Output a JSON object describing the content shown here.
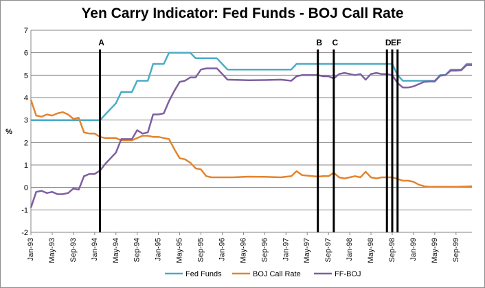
{
  "chart_data": {
    "type": "line",
    "title": "Yen Carry Indicator: Fed Funds - BOJ Call Rate",
    "xlabel": "",
    "ylabel": "%",
    "ylim": [
      -2,
      7
    ],
    "yticks": [
      -2,
      -1,
      0,
      1,
      2,
      3,
      4,
      5,
      6,
      7
    ],
    "xlim": [
      "1993-01",
      "1999-12"
    ],
    "x_tick_labels": [
      "Jan-93",
      "May-93",
      "Sep-93",
      "Jan-94",
      "May-94",
      "Sep-94",
      "Jan-95",
      "May-95",
      "Sep-95",
      "Jan-96",
      "May-96",
      "Sep-96",
      "Jan-97",
      "May-97",
      "Sep-97",
      "Jan-98",
      "May-98",
      "Sep-98",
      "Jan-99",
      "May-99",
      "Sep-99"
    ],
    "grid": "horizontal",
    "legend_position": "bottom",
    "events": [
      {
        "label": "A",
        "x": "1994-02"
      },
      {
        "label": "B",
        "x": "1997-07"
      },
      {
        "label": "C",
        "x": "1997-10"
      },
      {
        "label": "D",
        "x": "1998-08"
      },
      {
        "label": "E",
        "x": "1998-09"
      },
      {
        "label": "F",
        "x": "1998-10"
      }
    ],
    "series": [
      {
        "name": "Fed Funds",
        "color": "#4bacc6",
        "points": [
          [
            "1993-01",
            3.0
          ],
          [
            "1993-12",
            3.0
          ],
          [
            "1994-02",
            3.0
          ],
          [
            "1994-03",
            3.25
          ],
          [
            "1994-04",
            3.5
          ],
          [
            "1994-05",
            3.75
          ],
          [
            "1994-06",
            4.25
          ],
          [
            "1994-07",
            4.25
          ],
          [
            "1994-08",
            4.25
          ],
          [
            "1994-09",
            4.75
          ],
          [
            "1994-10",
            4.75
          ],
          [
            "1994-11",
            4.75
          ],
          [
            "1994-12",
            5.5
          ],
          [
            "1995-01",
            5.5
          ],
          [
            "1995-02",
            5.5
          ],
          [
            "1995-03",
            6.0
          ],
          [
            "1995-06",
            6.0
          ],
          [
            "1995-07",
            6.0
          ],
          [
            "1995-08",
            5.75
          ],
          [
            "1995-12",
            5.75
          ],
          [
            "1996-01",
            5.5
          ],
          [
            "1996-02",
            5.25
          ],
          [
            "1997-02",
            5.25
          ],
          [
            "1997-03",
            5.5
          ],
          [
            "1998-08",
            5.5
          ],
          [
            "1998-09",
            5.5
          ],
          [
            "1998-10",
            5.0
          ],
          [
            "1998-11",
            4.75
          ],
          [
            "1999-05",
            4.75
          ],
          [
            "1999-06",
            5.0
          ],
          [
            "1999-07",
            5.0
          ],
          [
            "1999-08",
            5.25
          ],
          [
            "1999-09",
            5.25
          ],
          [
            "1999-10",
            5.25
          ],
          [
            "1999-11",
            5.5
          ],
          [
            "1999-12",
            5.5
          ]
        ]
      },
      {
        "name": "BOJ Call Rate",
        "color": "#e5832c",
        "points": [
          [
            "1993-01",
            3.9
          ],
          [
            "1993-02",
            3.2
          ],
          [
            "1993-03",
            3.15
          ],
          [
            "1993-04",
            3.25
          ],
          [
            "1993-05",
            3.2
          ],
          [
            "1993-06",
            3.3
          ],
          [
            "1993-07",
            3.35
          ],
          [
            "1993-08",
            3.25
          ],
          [
            "1993-09",
            3.05
          ],
          [
            "1993-10",
            3.1
          ],
          [
            "1993-11",
            2.45
          ],
          [
            "1993-12",
            2.4
          ],
          [
            "1994-01",
            2.4
          ],
          [
            "1994-02",
            2.25
          ],
          [
            "1994-03",
            2.2
          ],
          [
            "1994-04",
            2.2
          ],
          [
            "1994-05",
            2.2
          ],
          [
            "1994-06",
            2.1
          ],
          [
            "1994-07",
            2.1
          ],
          [
            "1994-08",
            2.1
          ],
          [
            "1994-09",
            2.2
          ],
          [
            "1994-10",
            2.3
          ],
          [
            "1994-11",
            2.3
          ],
          [
            "1994-12",
            2.25
          ],
          [
            "1995-01",
            2.25
          ],
          [
            "1995-02",
            2.2
          ],
          [
            "1995-03",
            2.15
          ],
          [
            "1995-04",
            1.7
          ],
          [
            "1995-05",
            1.3
          ],
          [
            "1995-06",
            1.25
          ],
          [
            "1995-07",
            1.1
          ],
          [
            "1995-08",
            0.85
          ],
          [
            "1995-09",
            0.8
          ],
          [
            "1995-10",
            0.5
          ],
          [
            "1995-11",
            0.45
          ],
          [
            "1995-12",
            0.45
          ],
          [
            "1996-03",
            0.45
          ],
          [
            "1996-06",
            0.48
          ],
          [
            "1996-09",
            0.47
          ],
          [
            "1996-12",
            0.45
          ],
          [
            "1997-02",
            0.5
          ],
          [
            "1997-03",
            0.72
          ],
          [
            "1997-04",
            0.55
          ],
          [
            "1997-06",
            0.5
          ],
          [
            "1997-07",
            0.48
          ],
          [
            "1997-08",
            0.5
          ],
          [
            "1997-09",
            0.5
          ],
          [
            "1997-10",
            0.65
          ],
          [
            "1997-11",
            0.45
          ],
          [
            "1997-12",
            0.4
          ],
          [
            "1998-01",
            0.45
          ],
          [
            "1998-02",
            0.5
          ],
          [
            "1998-03",
            0.45
          ],
          [
            "1998-04",
            0.7
          ],
          [
            "1998-05",
            0.45
          ],
          [
            "1998-06",
            0.4
          ],
          [
            "1998-07",
            0.45
          ],
          [
            "1998-08",
            0.45
          ],
          [
            "1998-09",
            0.45
          ],
          [
            "1998-10",
            0.38
          ],
          [
            "1998-11",
            0.3
          ],
          [
            "1998-12",
            0.3
          ],
          [
            "1999-01",
            0.25
          ],
          [
            "1999-02",
            0.12
          ],
          [
            "1999-03",
            0.05
          ],
          [
            "1999-04",
            0.03
          ],
          [
            "1999-06",
            0.03
          ],
          [
            "1999-09",
            0.03
          ],
          [
            "1999-12",
            0.05
          ]
        ]
      },
      {
        "name": "FF-BOJ",
        "color": "#7e5ea0",
        "points": [
          [
            "1993-01",
            -0.9
          ],
          [
            "1993-02",
            -0.2
          ],
          [
            "1993-03",
            -0.15
          ],
          [
            "1993-04",
            -0.25
          ],
          [
            "1993-05",
            -0.2
          ],
          [
            "1993-06",
            -0.3
          ],
          [
            "1993-07",
            -0.3
          ],
          [
            "1993-08",
            -0.25
          ],
          [
            "1993-09",
            -0.05
          ],
          [
            "1993-10",
            -0.1
          ],
          [
            "1993-11",
            0.5
          ],
          [
            "1993-12",
            0.6
          ],
          [
            "1994-01",
            0.6
          ],
          [
            "1994-02",
            0.75
          ],
          [
            "1994-03",
            1.05
          ],
          [
            "1994-04",
            1.3
          ],
          [
            "1994-05",
            1.55
          ],
          [
            "1994-06",
            2.15
          ],
          [
            "1994-07",
            2.15
          ],
          [
            "1994-08",
            2.15
          ],
          [
            "1994-09",
            2.55
          ],
          [
            "1994-10",
            2.4
          ],
          [
            "1994-11",
            2.45
          ],
          [
            "1994-12",
            3.25
          ],
          [
            "1995-01",
            3.25
          ],
          [
            "1995-02",
            3.3
          ],
          [
            "1995-03",
            3.85
          ],
          [
            "1995-04",
            4.3
          ],
          [
            "1995-05",
            4.7
          ],
          [
            "1995-06",
            4.75
          ],
          [
            "1995-07",
            4.9
          ],
          [
            "1995-08",
            4.9
          ],
          [
            "1995-09",
            5.25
          ],
          [
            "1995-10",
            5.3
          ],
          [
            "1995-11",
            5.3
          ],
          [
            "1995-12",
            5.3
          ],
          [
            "1996-01",
            5.05
          ],
          [
            "1996-02",
            4.8
          ],
          [
            "1996-06",
            4.77
          ],
          [
            "1996-09",
            4.78
          ],
          [
            "1996-12",
            4.8
          ],
          [
            "1997-02",
            4.75
          ],
          [
            "1997-03",
            4.95
          ],
          [
            "1997-04",
            5.0
          ],
          [
            "1997-06",
            5.0
          ],
          [
            "1997-07",
            5.0
          ],
          [
            "1997-08",
            4.95
          ],
          [
            "1997-09",
            4.95
          ],
          [
            "1997-10",
            4.85
          ],
          [
            "1997-11",
            5.05
          ],
          [
            "1997-12",
            5.1
          ],
          [
            "1998-01",
            5.05
          ],
          [
            "1998-02",
            5.0
          ],
          [
            "1998-03",
            5.05
          ],
          [
            "1998-04",
            4.8
          ],
          [
            "1998-05",
            5.05
          ],
          [
            "1998-06",
            5.1
          ],
          [
            "1998-07",
            5.05
          ],
          [
            "1998-08",
            5.05
          ],
          [
            "1998-09",
            5.0
          ],
          [
            "1998-10",
            4.65
          ],
          [
            "1998-11",
            4.45
          ],
          [
            "1998-12",
            4.45
          ],
          [
            "1999-01",
            4.5
          ],
          [
            "1999-02",
            4.6
          ],
          [
            "1999-03",
            4.7
          ],
          [
            "1999-04",
            4.72
          ],
          [
            "1999-05",
            4.72
          ],
          [
            "1999-06",
            4.97
          ],
          [
            "1999-07",
            5.0
          ],
          [
            "1999-08",
            5.2
          ],
          [
            "1999-09",
            5.2
          ],
          [
            "1999-10",
            5.22
          ],
          [
            "1999-11",
            5.45
          ],
          [
            "1999-12",
            5.45
          ]
        ]
      }
    ]
  }
}
